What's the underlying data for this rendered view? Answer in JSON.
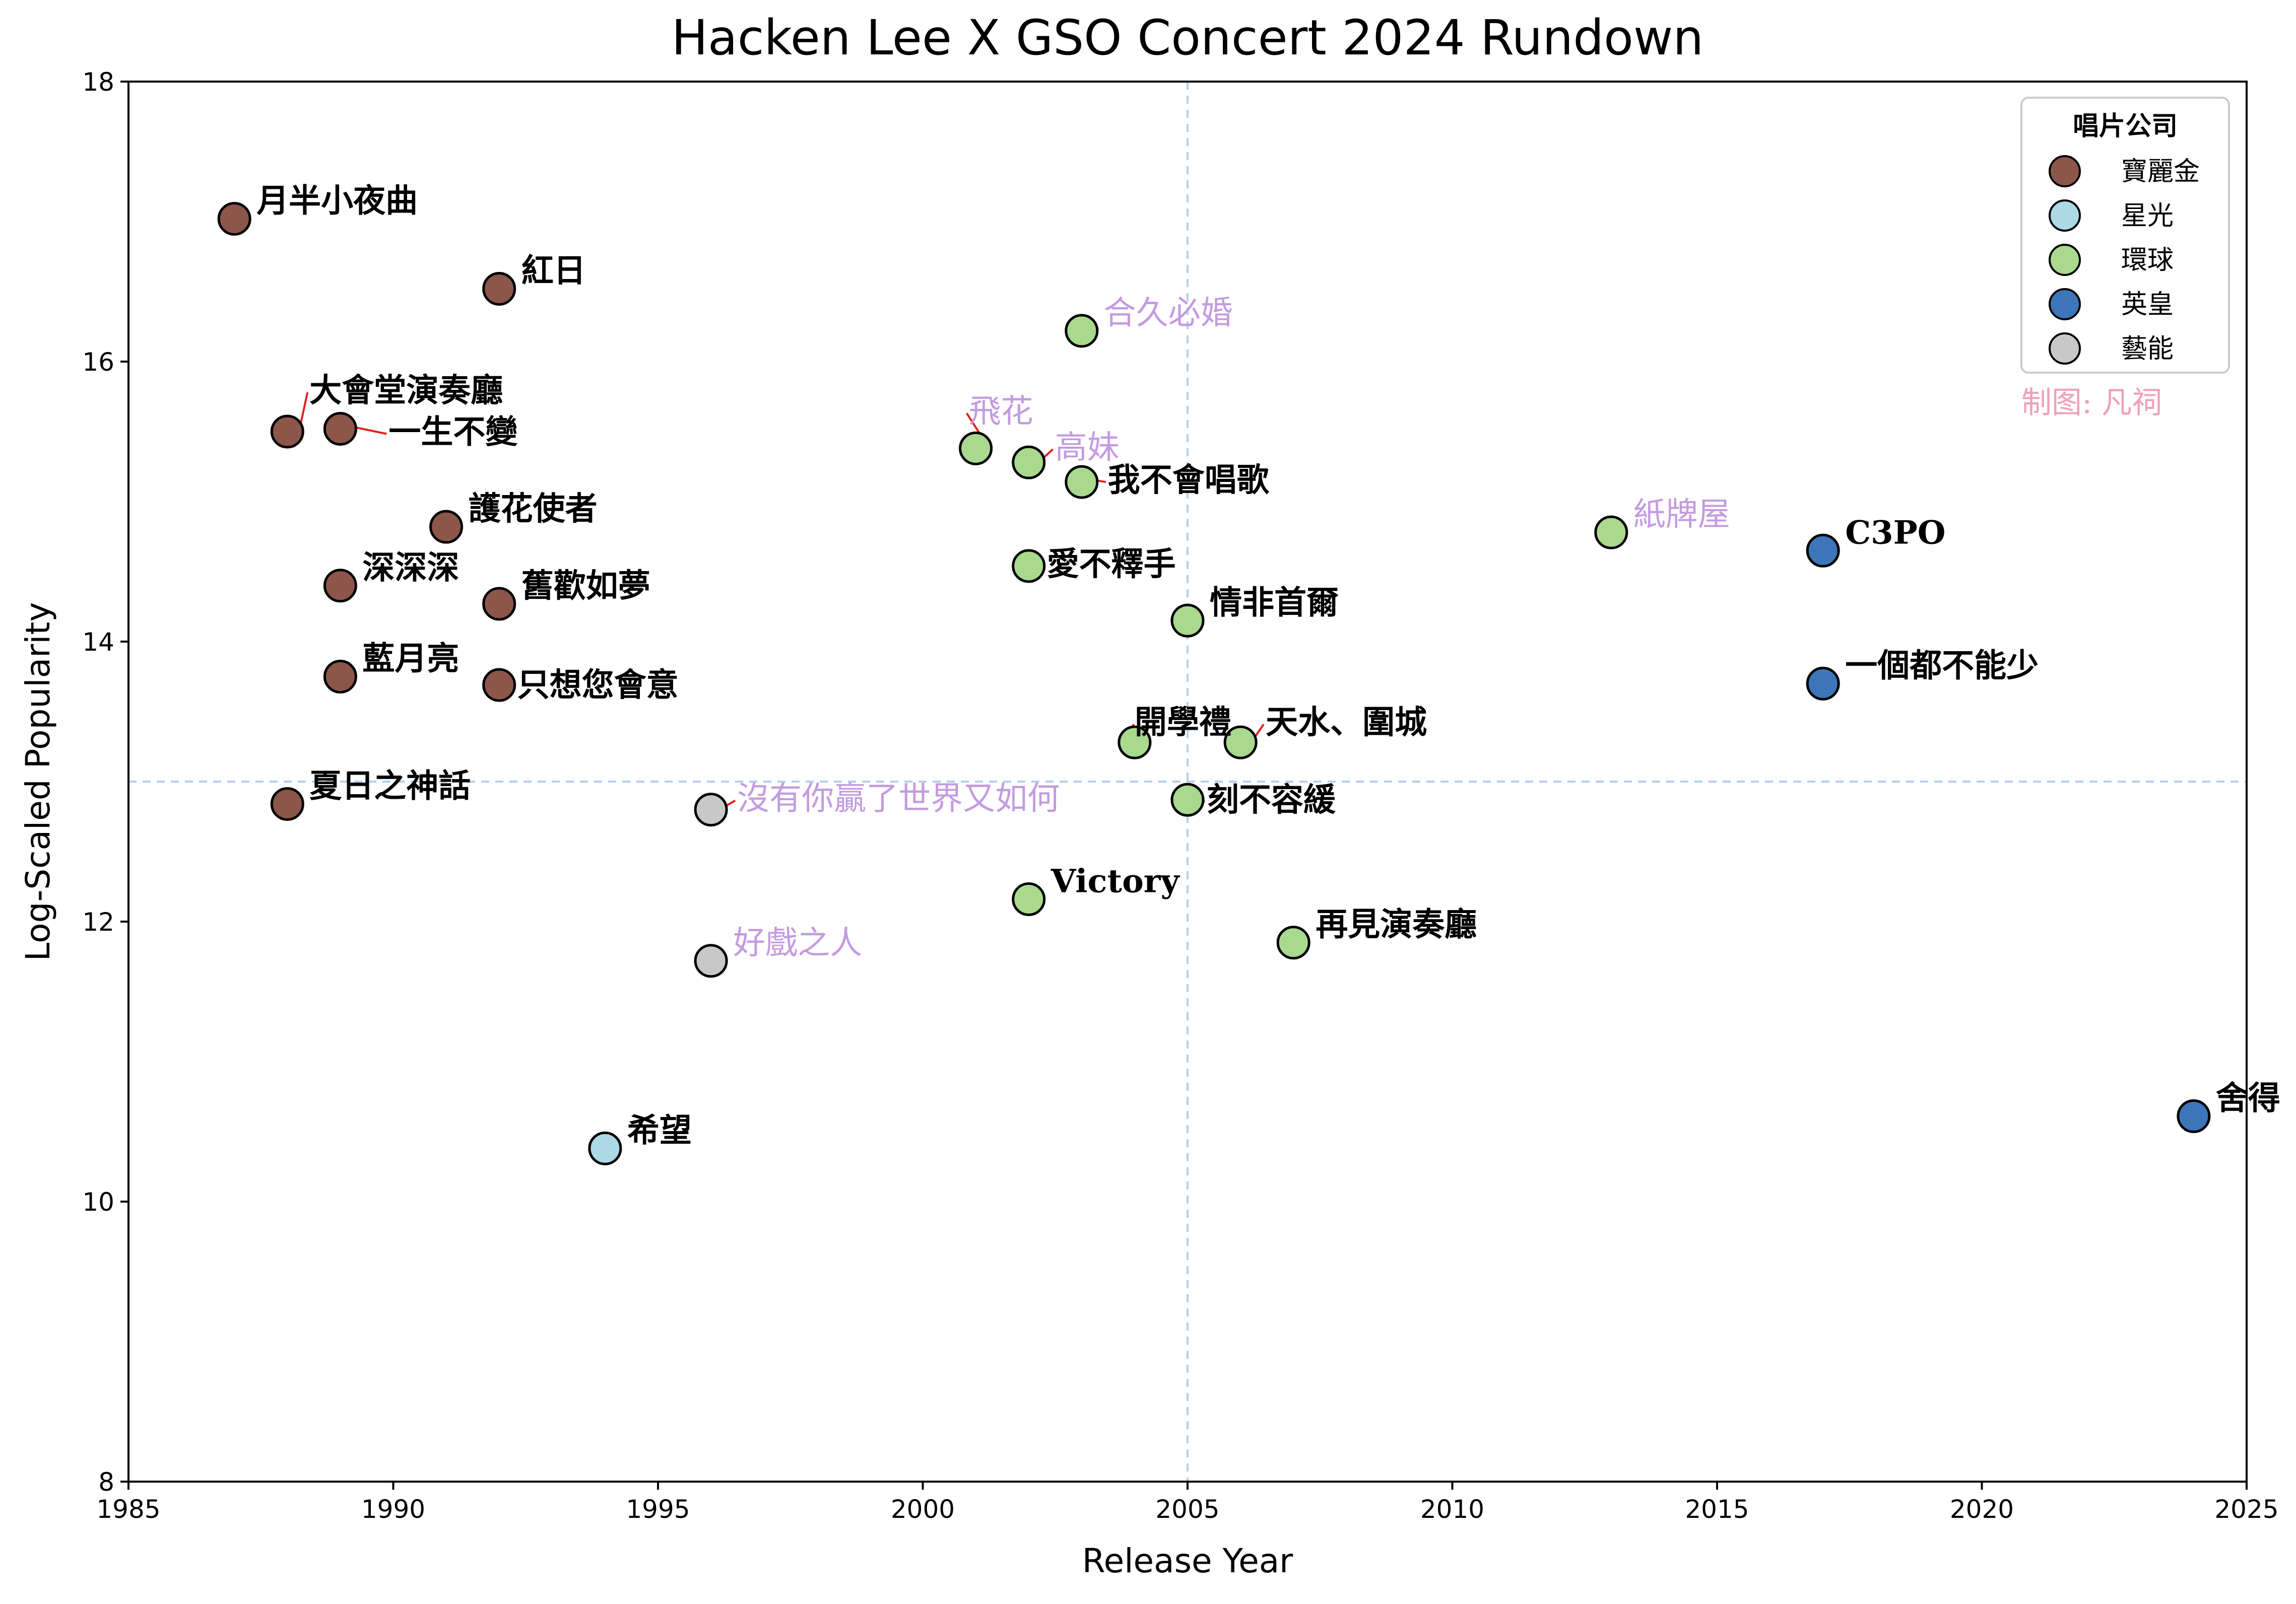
{
  "chart_data": {
    "type": "scatter",
    "title": "Hacken Lee X GSO Concert 2024 Rundown",
    "xlabel": "Release Year",
    "ylabel": "Log-Scaled Popularity",
    "xlim": [
      1985,
      2025
    ],
    "ylim": [
      8,
      18
    ],
    "x_ticks": [
      1985,
      1990,
      1995,
      2000,
      2005,
      2010,
      2015,
      2020,
      2025
    ],
    "y_ticks": [
      8,
      10,
      12,
      14,
      16,
      18
    ],
    "reference_lines": {
      "x": 2005,
      "y": 13
    },
    "grid": false,
    "legend": {
      "title": "唱片公司",
      "placement": "top-right",
      "entries": [
        {
          "name": "寶麗金",
          "color": "#8c564b"
        },
        {
          "name": "星光",
          "color": "#add8e6"
        },
        {
          "name": "環球",
          "color": "#a8d98e"
        },
        {
          "name": "英皇",
          "color": "#3c76b8"
        },
        {
          "name": "藝能",
          "color": "#c8c8c8"
        }
      ]
    },
    "credit": "制图: 凡祠",
    "label_colors": {
      "default": "#000000",
      "highlight": "#c39be0"
    },
    "points": [
      {
        "label": "月半小夜曲",
        "x": 1987,
        "y": 17.02,
        "company": "寶麗金",
        "highlight": false
      },
      {
        "label": "紅日",
        "x": 1992,
        "y": 16.52,
        "company": "寶麗金",
        "highlight": false
      },
      {
        "label": "大會堂演奏廳",
        "x": 1988,
        "y": 15.5,
        "company": "寶麗金",
        "highlight": false
      },
      {
        "label": "一生不變",
        "x": 1989,
        "y": 15.52,
        "company": "寶麗金",
        "highlight": false
      },
      {
        "label": "護花使者",
        "x": 1991,
        "y": 14.82,
        "company": "寶麗金",
        "highlight": false
      },
      {
        "label": "深深深",
        "x": 1989,
        "y": 14.4,
        "company": "寶麗金",
        "highlight": false
      },
      {
        "label": "舊歡如夢",
        "x": 1992,
        "y": 14.27,
        "company": "寶麗金",
        "highlight": false
      },
      {
        "label": "藍月亮",
        "x": 1989,
        "y": 13.75,
        "company": "寶麗金",
        "highlight": false
      },
      {
        "label": "只想您會意",
        "x": 1992,
        "y": 13.69,
        "company": "寶麗金",
        "highlight": false
      },
      {
        "label": "夏日之神話",
        "x": 1988,
        "y": 12.84,
        "company": "寶麗金",
        "highlight": false
      },
      {
        "label": "希望",
        "x": 1994,
        "y": 10.38,
        "company": "星光",
        "highlight": false
      },
      {
        "label": "沒有你贏了世界又如何",
        "x": 1996,
        "y": 12.8,
        "company": "藝能",
        "highlight": true
      },
      {
        "label": "好戲之人",
        "x": 1996,
        "y": 11.72,
        "company": "藝能",
        "highlight": true
      },
      {
        "label": "合久必婚",
        "x": 2003,
        "y": 16.22,
        "company": "環球",
        "highlight": true
      },
      {
        "label": "飛花",
        "x": 2001,
        "y": 15.38,
        "company": "環球",
        "highlight": true
      },
      {
        "label": "高妹",
        "x": 2002,
        "y": 15.28,
        "company": "環球",
        "highlight": true
      },
      {
        "label": "我不會唱歌",
        "x": 2003,
        "y": 15.14,
        "company": "環球",
        "highlight": false
      },
      {
        "label": "愛不釋手",
        "x": 2002,
        "y": 14.54,
        "company": "環球",
        "highlight": false
      },
      {
        "label": "情非首爾",
        "x": 2005,
        "y": 14.15,
        "company": "環球",
        "highlight": false
      },
      {
        "label": "開學禮",
        "x": 2004,
        "y": 13.28,
        "company": "環球",
        "highlight": false
      },
      {
        "label": "天水、圍城",
        "x": 2006,
        "y": 13.28,
        "company": "環球",
        "highlight": false
      },
      {
        "label": "刻不容緩",
        "x": 2005,
        "y": 12.87,
        "company": "環球",
        "highlight": false
      },
      {
        "label": "Victory",
        "x": 2002,
        "y": 12.16,
        "company": "環球",
        "highlight": false
      },
      {
        "label": "再見演奏廳",
        "x": 2007,
        "y": 11.85,
        "company": "環球",
        "highlight": false
      },
      {
        "label": "紙牌屋",
        "x": 2013,
        "y": 14.78,
        "company": "環球",
        "highlight": true
      },
      {
        "label": "C3PO",
        "x": 2017,
        "y": 14.65,
        "company": "英皇",
        "highlight": false
      },
      {
        "label": "一個都不能少",
        "x": 2017,
        "y": 13.7,
        "company": "英皇",
        "highlight": false
      },
      {
        "label": "舍得",
        "x": 2024,
        "y": 10.61,
        "company": "英皇",
        "highlight": false
      }
    ]
  }
}
